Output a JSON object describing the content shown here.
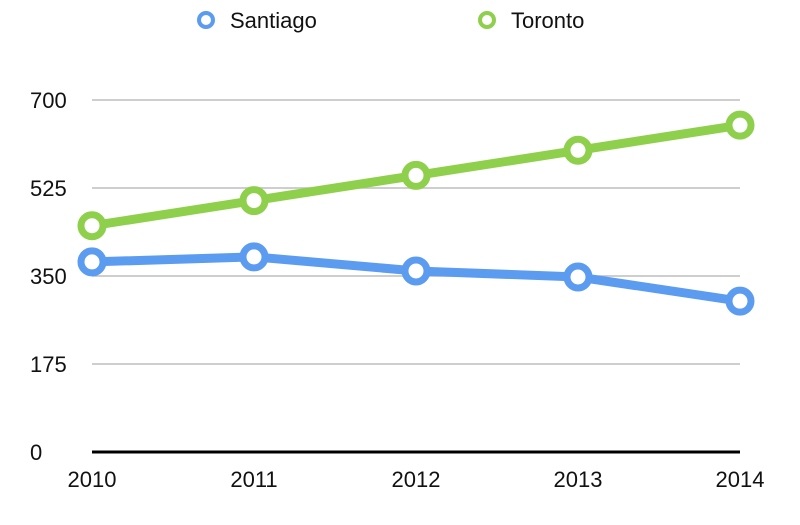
{
  "chart_data": {
    "type": "line",
    "x": [
      "2010",
      "2011",
      "2012",
      "2013",
      "2014"
    ],
    "y_ticks": [
      "0",
      "175",
      "350",
      "525",
      "700"
    ],
    "ylim": [
      0,
      700
    ],
    "grid": true,
    "legend_position": "top",
    "series": [
      {
        "name": "Santiago",
        "color": "#5b9bf0",
        "values": [
          378,
          388,
          360,
          348,
          300
        ]
      },
      {
        "name": "Toronto",
        "color": "#8ed04c",
        "values": [
          450,
          500,
          550,
          600,
          650
        ]
      }
    ]
  }
}
